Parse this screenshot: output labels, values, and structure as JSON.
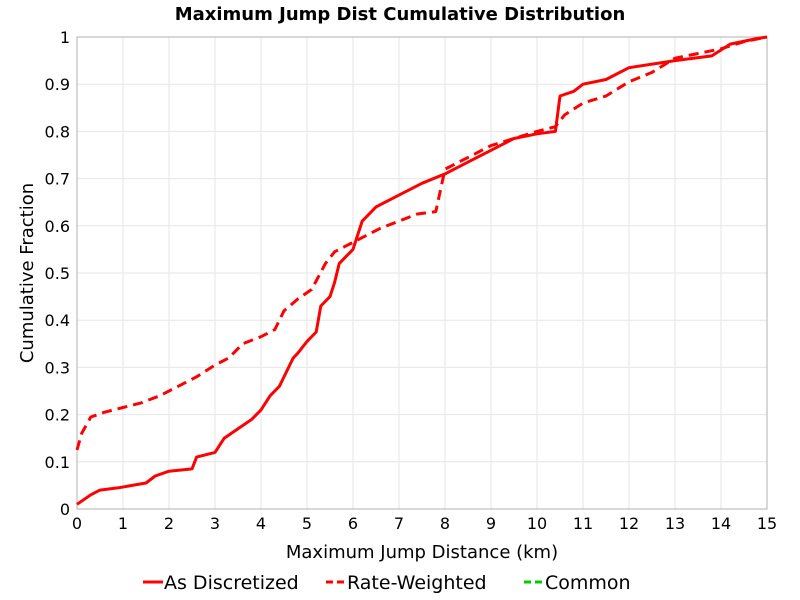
{
  "chart_data": {
    "type": "line",
    "title": "Maximum Jump Dist Cumulative Distribution",
    "xlabel": "Maximum Jump Distance (km)",
    "ylabel": "Cumulative Fraction",
    "xlim": [
      0,
      15
    ],
    "ylim": [
      0,
      1
    ],
    "xticks": [
      "0",
      "1",
      "2",
      "3",
      "4",
      "5",
      "6",
      "7",
      "8",
      "9",
      "10",
      "11",
      "12",
      "13",
      "14",
      "15"
    ],
    "yticks": [
      "0",
      "0.1",
      "0.2",
      "0.3",
      "0.4",
      "0.5",
      "0.6",
      "0.7",
      "0.8",
      "0.9",
      "1"
    ],
    "grid": true,
    "legend_position": "bottom",
    "series": [
      {
        "name": "As Discretized",
        "color": "#ff0000",
        "style": "solid",
        "x": [
          0,
          0.3,
          0.5,
          0.9,
          1.2,
          1.5,
          1.7,
          2.0,
          2.5,
          2.6,
          3.0,
          3.2,
          3.5,
          3.8,
          4.0,
          4.2,
          4.4,
          4.6,
          4.7,
          4.8,
          5.0,
          5.2,
          5.3,
          5.5,
          5.6,
          5.7,
          5.8,
          5.9,
          6.0,
          6.2,
          6.3,
          6.5,
          6.8,
          7.0,
          7.5,
          8.0,
          8.5,
          9.0,
          9.5,
          10.0,
          10.4,
          10.5,
          10.8,
          11.0,
          11.5,
          12.0,
          13.0,
          13.8,
          14.2,
          14.8,
          15.0
        ],
        "y": [
          0.01,
          0.03,
          0.04,
          0.045,
          0.05,
          0.055,
          0.07,
          0.08,
          0.085,
          0.11,
          0.12,
          0.15,
          0.17,
          0.19,
          0.21,
          0.24,
          0.26,
          0.3,
          0.32,
          0.33,
          0.355,
          0.375,
          0.43,
          0.45,
          0.48,
          0.52,
          0.53,
          0.54,
          0.55,
          0.61,
          0.62,
          0.64,
          0.655,
          0.665,
          0.69,
          0.71,
          0.735,
          0.76,
          0.785,
          0.795,
          0.8,
          0.875,
          0.885,
          0.9,
          0.91,
          0.935,
          0.95,
          0.96,
          0.985,
          0.997,
          1.0
        ]
      },
      {
        "name": "Rate-Weighted",
        "color": "#ff0000",
        "style": "dashed",
        "x": [
          0,
          0.1,
          0.3,
          0.6,
          1.0,
          1.4,
          1.8,
          2.2,
          2.6,
          3.0,
          3.3,
          3.6,
          4.0,
          4.3,
          4.5,
          4.8,
          5.1,
          5.4,
          5.6,
          5.9,
          6.3,
          6.6,
          7.0,
          7.4,
          7.8,
          8.0,
          8.5,
          9.0,
          9.5,
          10.0,
          10.4,
          10.6,
          11.0,
          11.5,
          12.0,
          12.5,
          13.0,
          13.5,
          14.0,
          14.5,
          15.0
        ],
        "y": [
          0.125,
          0.16,
          0.195,
          0.205,
          0.215,
          0.225,
          0.24,
          0.26,
          0.28,
          0.305,
          0.32,
          0.35,
          0.365,
          0.38,
          0.42,
          0.445,
          0.465,
          0.52,
          0.545,
          0.56,
          0.58,
          0.595,
          0.61,
          0.625,
          0.63,
          0.72,
          0.745,
          0.77,
          0.785,
          0.8,
          0.81,
          0.835,
          0.86,
          0.875,
          0.905,
          0.925,
          0.955,
          0.965,
          0.975,
          0.99,
          1.0
        ]
      },
      {
        "name": "Common",
        "color": "#00cc00",
        "style": "dashed",
        "x": [],
        "y": []
      }
    ]
  }
}
